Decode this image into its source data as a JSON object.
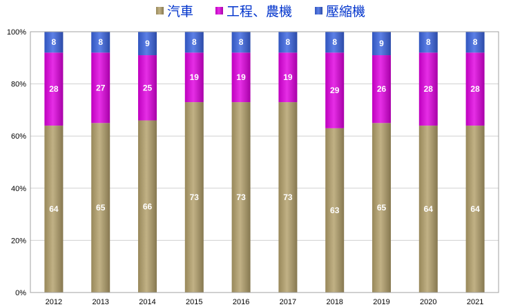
{
  "chart_data": {
    "type": "bar",
    "stacked": true,
    "percent": true,
    "categories": [
      "2012",
      "2013",
      "2014",
      "2015",
      "2016",
      "2017",
      "2018",
      "2019",
      "2020",
      "2021"
    ],
    "series": [
      {
        "name": "汽車",
        "color": "#b3a06a",
        "values": [
          64,
          65,
          66,
          73,
          73,
          73,
          63,
          65,
          64,
          64
        ]
      },
      {
        "name": "工程、農機",
        "color": "#e000e0",
        "values": [
          28,
          27,
          25,
          19,
          19,
          19,
          29,
          26,
          28,
          28
        ]
      },
      {
        "name": "壓縮機",
        "color": "#3a64e0",
        "values": [
          8,
          8,
          9,
          8,
          8,
          8,
          8,
          9,
          8,
          8
        ]
      }
    ],
    "ylim": [
      0,
      100
    ],
    "yticks": [
      "0%",
      "20%",
      "40%",
      "60%",
      "80%",
      "100%"
    ],
    "ytick_values": [
      0,
      20,
      40,
      60,
      80,
      100
    ],
    "grid": true,
    "legend": "top-center",
    "title": "",
    "xlabel": "",
    "ylabel": ""
  }
}
